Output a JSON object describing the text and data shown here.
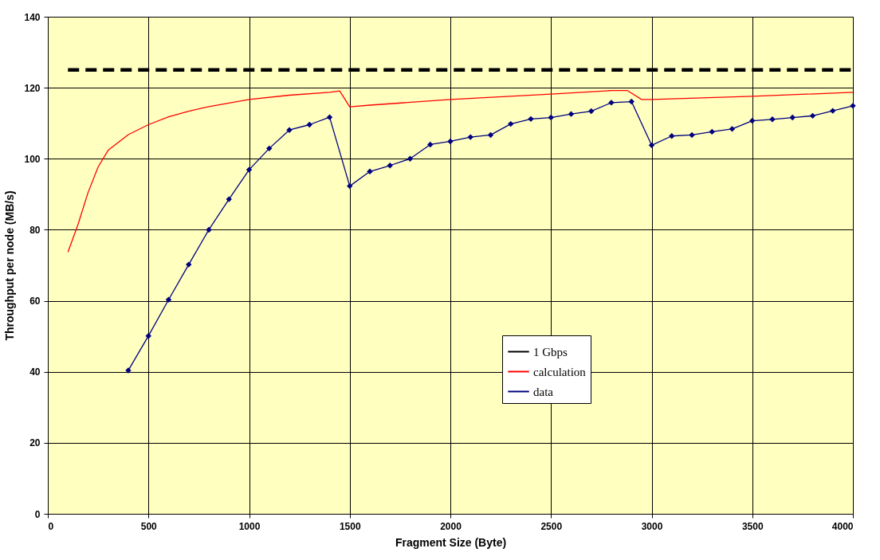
{
  "chart_data": {
    "type": "line",
    "xlabel": "Fragment Size (Byte)",
    "ylabel": "Throughput per node (MB/s)",
    "xlim": [
      0,
      4000
    ],
    "xticks": [
      0,
      500,
      1000,
      1500,
      2000,
      2500,
      3000,
      3500,
      4000
    ],
    "ylim": [
      0,
      140
    ],
    "yticks": [
      0,
      20,
      40,
      60,
      80,
      100,
      120,
      140
    ],
    "grid": true,
    "legend": "bottom right",
    "series": [
      {
        "name": "1 Gbps",
        "color": "#000000",
        "line_style": "dashed",
        "marker": "none",
        "x": [
          100,
          4000
        ],
        "values": [
          125,
          125
        ]
      },
      {
        "name": "calculation",
        "color": "#ff0000",
        "line_style": "solid",
        "marker": "none",
        "x": [
          100,
          150,
          200,
          250,
          300,
          400,
          500,
          600,
          700,
          800,
          1000,
          1200,
          1400,
          1450,
          1500,
          1600,
          2000,
          2500,
          2800,
          2880,
          2950,
          3000,
          3500,
          4000
        ],
        "values": [
          73.7,
          81.5,
          90.5,
          97.7,
          102.4,
          106.8,
          109.6,
          111.8,
          113.4,
          114.7,
          116.7,
          117.9,
          118.7,
          119.1,
          114.6,
          115.1,
          116.7,
          118.2,
          119.2,
          119.2,
          116.7,
          116.7,
          117.6,
          118.7
        ]
      },
      {
        "name": "data",
        "color": "#000080",
        "line_style": "solid",
        "marker": "diamond",
        "x": [
          400,
          500,
          600,
          700,
          800,
          900,
          1000,
          1100,
          1200,
          1300,
          1400,
          1500,
          1600,
          1700,
          1800,
          1900,
          2000,
          2100,
          2200,
          2300,
          2400,
          2500,
          2600,
          2700,
          2800,
          2900,
          3000,
          3100,
          3200,
          3300,
          3400,
          3500,
          3600,
          3700,
          3800,
          3900,
          4000
        ],
        "values": [
          40.4,
          50.1,
          60.3,
          70.2,
          80,
          88.6,
          96.9,
          102.9,
          108.1,
          109.6,
          111.7,
          92.3,
          96.4,
          98.1,
          100,
          104,
          104.9,
          106.1,
          106.7,
          109.8,
          111.2,
          111.6,
          112.6,
          113.4,
          115.8,
          116.1,
          103.8,
          106.4,
          106.7,
          107.6,
          108.4,
          110.7,
          111.1,
          111.6,
          112.1,
          113.5,
          114.9
        ]
      }
    ]
  }
}
